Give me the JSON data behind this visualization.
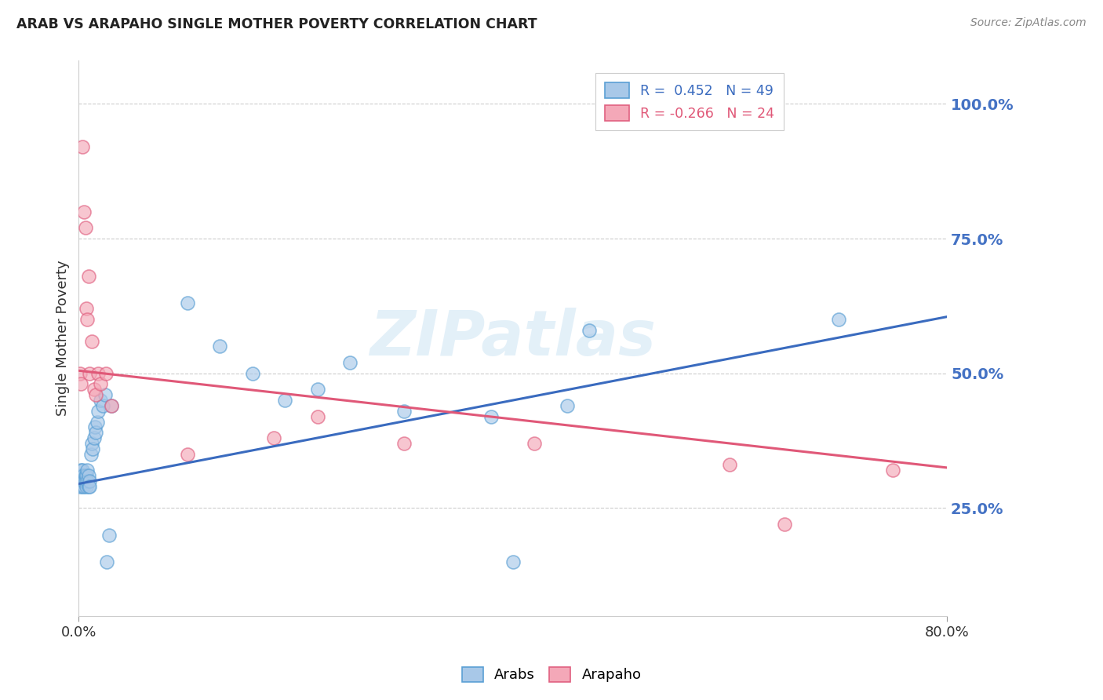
{
  "title": "ARAB VS ARAPAHO SINGLE MOTHER POVERTY CORRELATION CHART",
  "source": "Source: ZipAtlas.com",
  "ylabel": "Single Mother Poverty",
  "ytick_values": [
    0.25,
    0.5,
    0.75,
    1.0
  ],
  "xmin": 0.0,
  "xmax": 0.8,
  "ymin": 0.05,
  "ymax": 1.08,
  "arab_color": "#a8c8e8",
  "arab_color_edge": "#5a9fd4",
  "arapaho_color": "#f4a8b8",
  "arapaho_color_edge": "#e06080",
  "arab_line_color": "#3a6bbf",
  "arapaho_line_color": "#e05878",
  "watermark": "ZIPatlas",
  "arab_scatter_x": [
    0.001,
    0.001,
    0.001,
    0.002,
    0.002,
    0.002,
    0.003,
    0.003,
    0.003,
    0.004,
    0.004,
    0.005,
    0.005,
    0.006,
    0.006,
    0.007,
    0.007,
    0.008,
    0.008,
    0.009,
    0.009,
    0.01,
    0.01,
    0.011,
    0.012,
    0.013,
    0.014,
    0.015,
    0.016,
    0.017,
    0.018,
    0.02,
    0.022,
    0.024,
    0.026,
    0.028,
    0.03,
    0.1,
    0.13,
    0.16,
    0.19,
    0.22,
    0.25,
    0.3,
    0.38,
    0.4,
    0.45,
    0.47,
    0.7
  ],
  "arab_scatter_y": [
    0.29,
    0.3,
    0.31,
    0.3,
    0.31,
    0.32,
    0.29,
    0.3,
    0.32,
    0.3,
    0.31,
    0.29,
    0.3,
    0.31,
    0.3,
    0.29,
    0.31,
    0.3,
    0.32,
    0.29,
    0.31,
    0.3,
    0.29,
    0.35,
    0.37,
    0.36,
    0.38,
    0.4,
    0.39,
    0.41,
    0.43,
    0.45,
    0.44,
    0.46,
    0.15,
    0.2,
    0.44,
    0.63,
    0.55,
    0.5,
    0.45,
    0.47,
    0.52,
    0.43,
    0.42,
    0.15,
    0.44,
    0.58,
    0.6
  ],
  "arapaho_scatter_x": [
    0.001,
    0.002,
    0.003,
    0.005,
    0.006,
    0.007,
    0.008,
    0.009,
    0.01,
    0.012,
    0.014,
    0.016,
    0.018,
    0.02,
    0.025,
    0.03,
    0.1,
    0.18,
    0.22,
    0.3,
    0.42,
    0.6,
    0.65,
    0.75
  ],
  "arapaho_scatter_y": [
    0.5,
    0.48,
    0.92,
    0.8,
    0.77,
    0.62,
    0.6,
    0.68,
    0.5,
    0.56,
    0.47,
    0.46,
    0.5,
    0.48,
    0.5,
    0.44,
    0.35,
    0.38,
    0.42,
    0.37,
    0.37,
    0.33,
    0.22,
    0.32
  ],
  "arab_line_x0": 0.0,
  "arab_line_x1": 0.8,
  "arab_line_y0": 0.295,
  "arab_line_y1": 0.605,
  "arapaho_line_x0": 0.0,
  "arapaho_line_x1": 0.8,
  "arapaho_line_y0": 0.505,
  "arapaho_line_y1": 0.325
}
